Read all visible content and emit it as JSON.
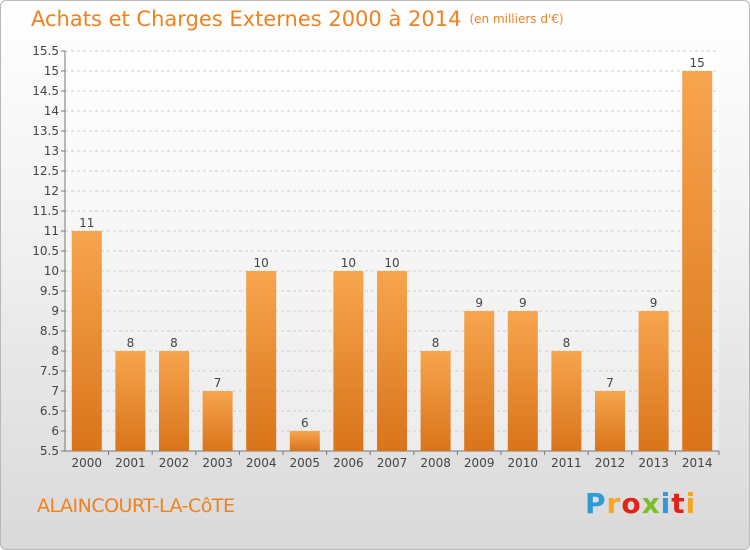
{
  "header": {
    "title": "Achats et Charges Externes 2000 à 2014",
    "subtitle": "(en milliers d'€)"
  },
  "commune": "ALAINCOURT-LA-CôTE",
  "logo": {
    "text": "Proxiti"
  },
  "colors": {
    "accent": "#f0821e",
    "bar_light": "#f7a54e",
    "bar_dark": "#d9741a",
    "grid": "#cccccc"
  },
  "chart_data": {
    "type": "bar",
    "title": "Achats et Charges Externes 2000 à 2014",
    "subtitle": "(en milliers d'€)",
    "categories": [
      "2000",
      "2001",
      "2002",
      "2003",
      "2004",
      "2005",
      "2006",
      "2007",
      "2008",
      "2009",
      "2010",
      "2011",
      "2012",
      "2013",
      "2014"
    ],
    "values": [
      11,
      8,
      8,
      7,
      10,
      6,
      10,
      10,
      8,
      9,
      9,
      8,
      7,
      9,
      15
    ],
    "data_labels": [
      "11",
      "8",
      "8",
      "7",
      "10",
      "6",
      "10",
      "10",
      "8",
      "9",
      "9",
      "8",
      "7",
      "9",
      "15"
    ],
    "ylim": [
      5.5,
      15.5
    ],
    "yticks": [
      "5.5",
      "6",
      "6.5",
      "7",
      "7.5",
      "8",
      "8.5",
      "9",
      "9.5",
      "10",
      "10.5",
      "11",
      "11.5",
      "12",
      "12.5",
      "13",
      "13.5",
      "14",
      "14.5",
      "15",
      "15.5"
    ],
    "grid": true,
    "legend": "none"
  }
}
